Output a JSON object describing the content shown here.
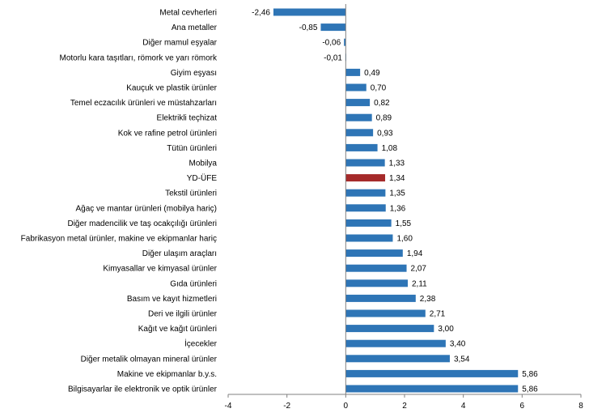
{
  "chart_data": {
    "type": "bar",
    "orientation": "horizontal",
    "categories": [
      "Metal cevherleri",
      "Ana metaller",
      "Diğer mamul eşyalar",
      "Motorlu kara taşıtları, römork ve yarı römork",
      "Giyim eşyası",
      "Kauçuk ve plastik ürünler",
      "Temel eczacılık ürünleri ve müstahzarları",
      "Elektrikli teçhizat",
      "Kok ve rafine petrol ürünleri",
      "Tütün ürünleri",
      "Mobilya",
      "YD-ÜFE",
      "Tekstil ürünleri",
      "Ağaç ve mantar ürünleri (mobilya hariç)",
      "Diğer madencilik ve taş ocakçılığı ürünleri",
      "Fabrikasyon metal ürünler, makine ve ekipmanlar hariç",
      "Diğer ulaşım araçları",
      "Kimyasallar ve kimyasal ürünler",
      "Gıda ürünleri",
      "Basım ve kayıt hizmetleri",
      "Deri ve ilgili ürünler",
      "Kağıt ve kağıt ürünleri",
      "İçecekler",
      "Diğer metalik olmayan mineral ürünler",
      "Makine ve ekipmanlar b.y.s.",
      "Bilgisayarlar ile elektronik ve optik ürünler"
    ],
    "values": [
      -2.46,
      -0.85,
      -0.06,
      -0.01,
      0.49,
      0.7,
      0.82,
      0.89,
      0.93,
      1.08,
      1.33,
      1.34,
      1.35,
      1.36,
      1.55,
      1.6,
      1.94,
      2.07,
      2.11,
      2.38,
      2.71,
      3.0,
      3.4,
      3.54,
      5.86,
      5.86
    ],
    "value_labels": [
      "-2,46",
      "-0,85",
      "-0,06",
      "-0,01",
      "0,49",
      "0,70",
      "0,82",
      "0,89",
      "0,93",
      "1,08",
      "1,33",
      "1,34",
      "1,35",
      "1,36",
      "1,55",
      "1,60",
      "1,94",
      "2,07",
      "2,11",
      "2,38",
      "2,71",
      "3,00",
      "3,40",
      "3,54",
      "5,86",
      "5,86"
    ],
    "highlight_category": "YD-ÜFE",
    "xlim": [
      -4,
      8
    ],
    "xticks": [
      -4,
      -2,
      0,
      2,
      4,
      6,
      8
    ],
    "xtick_labels": [
      "-4",
      "-2",
      "0",
      "2",
      "4",
      "6",
      "8"
    ],
    "title": "",
    "xlabel": "",
    "ylabel": "",
    "grid": false,
    "colors": {
      "bar": "#2E75B6",
      "highlight": "#A52A2A",
      "axis": "#808080"
    }
  }
}
